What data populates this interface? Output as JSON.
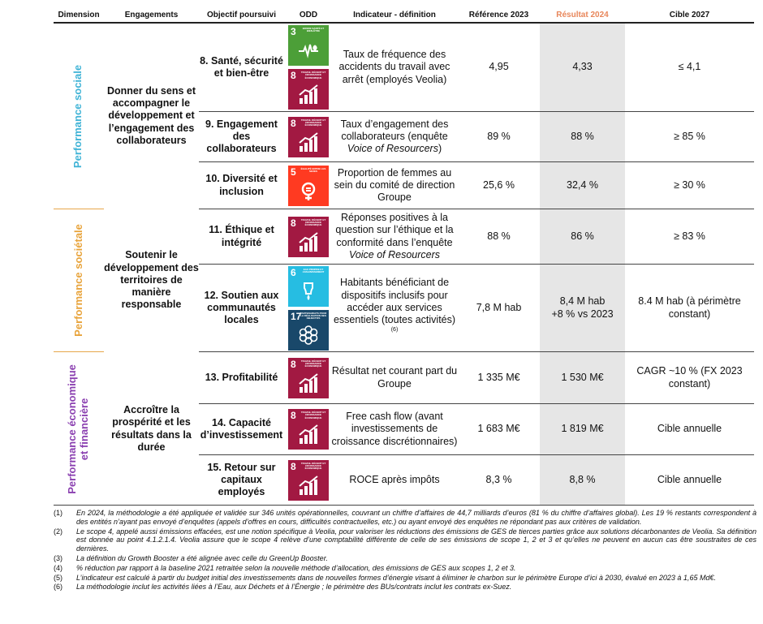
{
  "headers": {
    "dimension": "Dimension",
    "engagements": "Engagements",
    "objectif": "Objectif poursuivi",
    "odd": "ODD",
    "indicateur": "Indicateur - définition",
    "reference": "Référence 2023",
    "resultat": "Résultat 2024",
    "cible": "Cible 2027"
  },
  "colors": {
    "sociale": "#3fb3d6",
    "societale": "#e8a33a",
    "economique": "#8a3fb0",
    "resultat_header": "#e8865a",
    "resultat_shade": "#e6e6e6"
  },
  "dimensions": [
    {
      "label": "Performance sociale",
      "engagement": "Donner du sens et accompagner le développement et l’engagement des collaborateurs"
    },
    {
      "label": "Performance sociétale",
      "engagement": "Soutenir le développement des territoires de manière responsable"
    },
    {
      "label_line1": "Performance économique",
      "label_line2": "et financière",
      "engagement": "Accroître la prospérité et les résultats dans la durée"
    }
  ],
  "rows": [
    {
      "objectif": "8. Santé, sécurité et bien-être",
      "odd": [
        {
          "num": "3",
          "title": "Bonne santé et bien-être",
          "color": "#4c9f38",
          "icon": "heartbeat-icon"
        },
        {
          "num": "8",
          "title": "Travail décent et croissance économique",
          "color": "#a21942",
          "icon": "growth-chart-icon"
        }
      ],
      "indicateur": "Taux de fréquence des accidents du travail avec arrêt (employés Veolia)",
      "reference": "4,95",
      "resultat": "4,33",
      "cible": "≤ 4,1"
    },
    {
      "objectif": "9. Engagement des collaborateurs",
      "odd": [
        {
          "num": "8",
          "title": "Travail décent et croissance économique",
          "color": "#a21942",
          "icon": "growth-chart-icon"
        }
      ],
      "indicateur": "Taux d’engagement des collaborateurs (enquête",
      "indicateur_italic": "Voice of Resourcers",
      "indicateur_after": ")",
      "reference": "89 %",
      "resultat": "88 %",
      "cible": "≥ 85 %"
    },
    {
      "objectif": "10. Diversité et inclusion",
      "odd": [
        {
          "num": "5",
          "title": "Égalité entre les sexes",
          "color": "#ff3a21",
          "icon": "gender-equality-icon"
        }
      ],
      "indicateur": "Proportion de femmes au sein du comité de direction Groupe",
      "reference": "25,6 %",
      "resultat": "32,4 %",
      "cible": "≥ 30 %"
    },
    {
      "objectif": "11. Éthique et intégrité",
      "odd": [
        {
          "num": "8",
          "title": "Travail décent et croissance économique",
          "color": "#a21942",
          "icon": "growth-chart-icon"
        }
      ],
      "indicateur": "Réponses positives à la question sur l’éthique et la conformité dans l’enquête",
      "indicateur_italic": "Voice of Resourcers",
      "reference": "88 %",
      "resultat": "86 %",
      "cible": "≥ 83 %"
    },
    {
      "objectif": "12. Soutien aux communautés locales",
      "odd": [
        {
          "num": "6",
          "title": "Eau propre et assainissement",
          "color": "#26bde2",
          "icon": "water-drop-icon"
        },
        {
          "num": "17",
          "title": "Partenariats pour la réalisation des objectifs",
          "color": "#19486a",
          "icon": "partnership-flower-icon"
        }
      ],
      "indicateur": "Habitants bénéficiant de dispositifs inclusifs pour accéder aux services essentiels (toutes activités)",
      "indicateur_sup": "(6)",
      "reference": "7,8 M hab",
      "resultat": "8,4 M hab",
      "resultat_line2": "+8 % vs 2023",
      "cible": "8.4 M hab (à périmètre constant)"
    },
    {
      "objectif": "13. Profitabilité",
      "odd": [
        {
          "num": "8",
          "title": "Travail décent et croissance économique",
          "color": "#a21942",
          "icon": "growth-chart-icon"
        }
      ],
      "indicateur": "Résultat net courant part du Groupe",
      "reference": "1 335 M€",
      "resultat": "1 530 M€",
      "cible": "CAGR ~10 % (FX 2023 constant)"
    },
    {
      "objectif": "14. Capacité d’investissement",
      "odd": [
        {
          "num": "8",
          "title": "Travail décent et croissance économique",
          "color": "#a21942",
          "icon": "growth-chart-icon"
        }
      ],
      "indicateur": "Free cash flow (avant investissements de croissance discrétionnaires)",
      "reference": "1 683 M€",
      "resultat": "1 819 M€",
      "cible": "Cible annuelle"
    },
    {
      "objectif": "15. Retour sur capitaux employés",
      "odd": [
        {
          "num": "8",
          "title": "Travail décent et croissance économique",
          "color": "#a21942",
          "icon": "growth-chart-icon"
        }
      ],
      "indicateur": "ROCE après impôts",
      "reference": "8,3 %",
      "resultat": "8,8 %",
      "cible": "Cible annuelle"
    }
  ],
  "footnotes": [
    {
      "key": "(1)",
      "text": "En 2024, la méthodologie a été appliquée et validée sur 346 unités opérationnelles, couvrant un chiffre d’affaires de 44,7 milliards d’euros (81 % du chiffre d’affaires global). Les 19 % restants correspondent à des entités n’ayant pas envoyé d’enquêtes (appels d’offres en cours, difficultés contractuelles, etc.) ou ayant envoyé des enquêtes ne répondant pas aux critères de validation."
    },
    {
      "key": "(2)",
      "text": "Le scope 4, appelé aussi émissions effacées, est une notion spécifique à Veolia, pour valoriser les réductions des émissions de GES de tierces parties grâce aux solutions décarbonantes de Veolia. Sa définition est donnée au point 4.1.2.1.4. Veolia assure que le scope 4 relève d’une comptabilité différente de celle de ses émissions de scope 1, 2 et 3 et qu’elles ne peuvent en aucun cas être soustraites de ces dernières."
    },
    {
      "key": "(3)",
      "text": "La définition du Growth Booster a été alignée avec celle du GreenUp Booster."
    },
    {
      "key": "(4)",
      "text": "% réduction par rapport à la baseline 2021 retraitée selon la nouvelle méthode d’allocation, des émissions de GES aux scopes 1, 2 et 3."
    },
    {
      "key": "(5)",
      "text": "L’indicateur est calculé à partir du budget initial des investissements dans de nouvelles formes d’énergie visant à éliminer le charbon sur le périmètre Europe d’ici à 2030, évalué en 2023 à 1,65 Md€."
    },
    {
      "key": "(6)",
      "text": "La méthodologie inclut les activités liées à l’Eau, aux Déchets et à l’Énergie ; le périmètre des BUs/contrats inclut les contrats ex-Suez."
    }
  ]
}
